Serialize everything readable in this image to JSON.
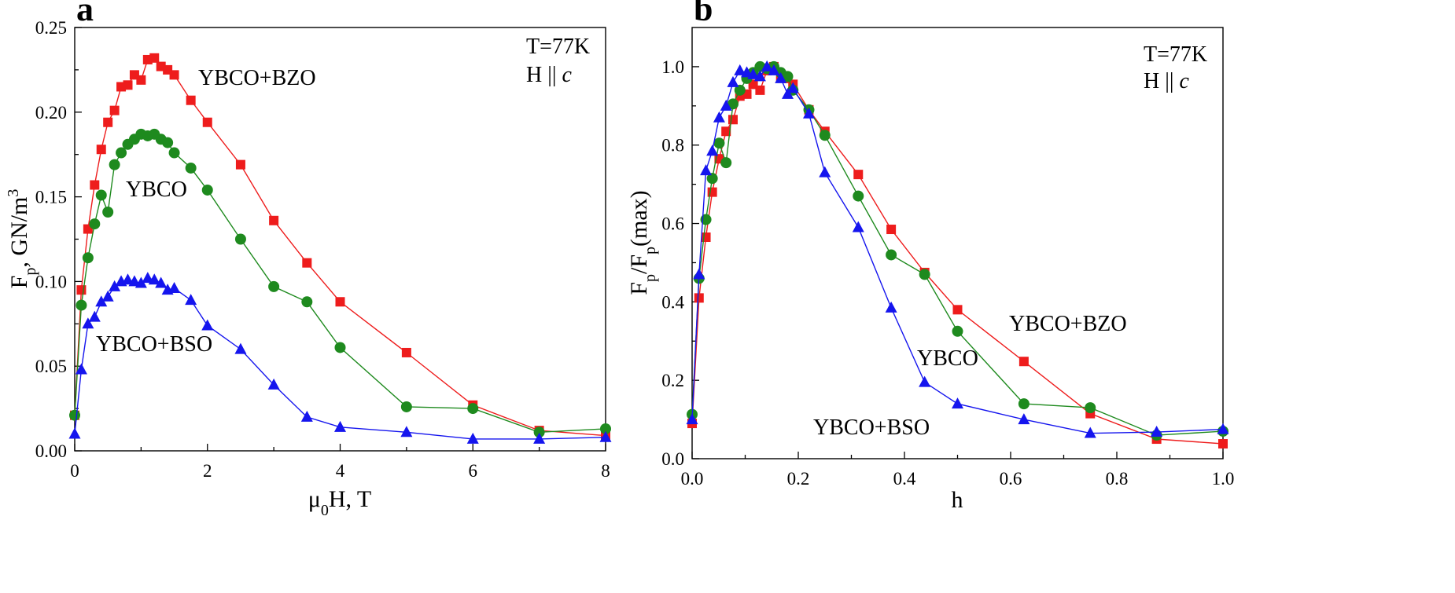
{
  "chart_data": [
    {
      "type": "line",
      "panel_label": "a",
      "xlabel_parts": [
        "μ",
        "0",
        "H, T"
      ],
      "ylabel_parts": [
        "F",
        "p",
        ", GN/m",
        "3"
      ],
      "xlim": [
        0,
        8
      ],
      "ylim": [
        0,
        0.25
      ],
      "x_ticks": [
        0,
        2,
        4,
        6,
        8
      ],
      "x_tick_labels": [
        "0",
        "2",
        "4",
        "6",
        "8"
      ],
      "y_ticks": [
        0,
        0.05,
        0.1,
        0.15,
        0.2,
        0.25
      ],
      "y_tick_labels": [
        "0.00",
        "0.05",
        "0.10",
        "0.15",
        "0.20",
        "0.25"
      ],
      "annotations": [
        "T=77K",
        "H || c"
      ],
      "series": [
        {
          "name": "YBCO+BZO",
          "color": "#ee1c1c",
          "marker": "square",
          "points": [
            [
              0.0,
              0.021
            ],
            [
              0.1,
              0.095
            ],
            [
              0.2,
              0.131
            ],
            [
              0.3,
              0.157
            ],
            [
              0.4,
              0.178
            ],
            [
              0.5,
              0.194
            ],
            [
              0.6,
              0.201
            ],
            [
              0.7,
              0.215
            ],
            [
              0.8,
              0.216
            ],
            [
              0.9,
              0.222
            ],
            [
              1.0,
              0.219
            ],
            [
              1.1,
              0.231
            ],
            [
              1.2,
              0.232
            ],
            [
              1.3,
              0.227
            ],
            [
              1.4,
              0.225
            ],
            [
              1.5,
              0.222
            ],
            [
              1.75,
              0.207
            ],
            [
              2.0,
              0.194
            ],
            [
              2.5,
              0.169
            ],
            [
              3.0,
              0.136
            ],
            [
              3.5,
              0.111
            ],
            [
              4.0,
              0.088
            ],
            [
              5.0,
              0.058
            ],
            [
              6.0,
              0.027
            ],
            [
              7.0,
              0.012
            ],
            [
              8.0,
              0.009
            ]
          ]
        },
        {
          "name": "YBCO",
          "color": "#1e8a1e",
          "marker": "circle",
          "points": [
            [
              0.0,
              0.021
            ],
            [
              0.1,
              0.086
            ],
            [
              0.2,
              0.114
            ],
            [
              0.3,
              0.134
            ],
            [
              0.4,
              0.151
            ],
            [
              0.5,
              0.141
            ],
            [
              0.6,
              0.169
            ],
            [
              0.7,
              0.176
            ],
            [
              0.8,
              0.181
            ],
            [
              0.9,
              0.184
            ],
            [
              1.0,
              0.187
            ],
            [
              1.1,
              0.186
            ],
            [
              1.2,
              0.187
            ],
            [
              1.3,
              0.184
            ],
            [
              1.4,
              0.182
            ],
            [
              1.5,
              0.176
            ],
            [
              1.75,
              0.167
            ],
            [
              2.0,
              0.154
            ],
            [
              2.5,
              0.125
            ],
            [
              3.0,
              0.097
            ],
            [
              3.5,
              0.088
            ],
            [
              4.0,
              0.061
            ],
            [
              5.0,
              0.026
            ],
            [
              6.0,
              0.025
            ],
            [
              7.0,
              0.011
            ],
            [
              8.0,
              0.013
            ]
          ]
        },
        {
          "name": "YBCO+BSO",
          "color": "#1515ee",
          "marker": "triangle",
          "points": [
            [
              0.0,
              0.01
            ],
            [
              0.1,
              0.048
            ],
            [
              0.2,
              0.075
            ],
            [
              0.3,
              0.079
            ],
            [
              0.4,
              0.088
            ],
            [
              0.5,
              0.091
            ],
            [
              0.6,
              0.097
            ],
            [
              0.7,
              0.1
            ],
            [
              0.8,
              0.101
            ],
            [
              0.9,
              0.1
            ],
            [
              1.0,
              0.099
            ],
            [
              1.1,
              0.102
            ],
            [
              1.2,
              0.101
            ],
            [
              1.3,
              0.099
            ],
            [
              1.4,
              0.095
            ],
            [
              1.5,
              0.096
            ],
            [
              1.75,
              0.089
            ],
            [
              2.0,
              0.074
            ],
            [
              2.5,
              0.06
            ],
            [
              3.0,
              0.039
            ],
            [
              3.5,
              0.02
            ],
            [
              4.0,
              0.014
            ],
            [
              5.0,
              0.011
            ],
            [
              6.0,
              0.007
            ],
            [
              7.0,
              0.007
            ],
            [
              8.0,
              0.008
            ]
          ]
        }
      ]
    },
    {
      "type": "line",
      "panel_label": "b",
      "xlabel": "h",
      "ylabel_parts": [
        "F",
        "p",
        "/F",
        "p",
        "(max)"
      ],
      "xlim": [
        0,
        1
      ],
      "ylim": [
        0,
        1.1
      ],
      "x_ticks": [
        0,
        0.2,
        0.4,
        0.6,
        0.8,
        1.0
      ],
      "x_tick_labels": [
        "0.0",
        "0.2",
        "0.4",
        "0.6",
        "0.8",
        "1.0"
      ],
      "y_ticks": [
        0,
        0.2,
        0.4,
        0.6,
        0.8,
        1.0
      ],
      "y_tick_labels": [
        "0.0",
        "0.2",
        "0.4",
        "0.6",
        "0.8",
        "1.0"
      ],
      "annotations": [
        "T=77K",
        "H || c"
      ],
      "series": [
        {
          "name": "YBCO+BZO",
          "color": "#ee1c1c",
          "marker": "square",
          "points": [
            [
              0.0,
              0.09
            ],
            [
              0.013,
              0.41
            ],
            [
              0.026,
              0.565
            ],
            [
              0.038,
              0.68
            ],
            [
              0.051,
              0.765
            ],
            [
              0.064,
              0.835
            ],
            [
              0.077,
              0.865
            ],
            [
              0.09,
              0.925
            ],
            [
              0.103,
              0.93
            ],
            [
              0.115,
              0.955
            ],
            [
              0.128,
              0.94
            ],
            [
              0.141,
              0.99
            ],
            [
              0.154,
              1.0
            ],
            [
              0.167,
              0.975
            ],
            [
              0.18,
              0.97
            ],
            [
              0.19,
              0.955
            ],
            [
              0.22,
              0.89
            ],
            [
              0.25,
              0.835
            ],
            [
              0.313,
              0.725
            ],
            [
              0.375,
              0.585
            ],
            [
              0.438,
              0.475
            ],
            [
              0.5,
              0.38
            ],
            [
              0.625,
              0.248
            ],
            [
              0.75,
              0.115
            ],
            [
              0.875,
              0.05
            ],
            [
              1.0,
              0.038
            ]
          ]
        },
        {
          "name": "YBCO",
          "color": "#1e8a1e",
          "marker": "circle",
          "points": [
            [
              0.0,
              0.113
            ],
            [
              0.013,
              0.46
            ],
            [
              0.026,
              0.61
            ],
            [
              0.038,
              0.715
            ],
            [
              0.051,
              0.805
            ],
            [
              0.064,
              0.755
            ],
            [
              0.077,
              0.905
            ],
            [
              0.09,
              0.94
            ],
            [
              0.103,
              0.97
            ],
            [
              0.115,
              0.985
            ],
            [
              0.128,
              1.0
            ],
            [
              0.141,
              0.995
            ],
            [
              0.154,
              1.0
            ],
            [
              0.167,
              0.985
            ],
            [
              0.18,
              0.975
            ],
            [
              0.19,
              0.94
            ],
            [
              0.22,
              0.89
            ],
            [
              0.25,
              0.825
            ],
            [
              0.313,
              0.67
            ],
            [
              0.375,
              0.52
            ],
            [
              0.438,
              0.47
            ],
            [
              0.5,
              0.325
            ],
            [
              0.625,
              0.14
            ],
            [
              0.75,
              0.13
            ],
            [
              0.875,
              0.06
            ],
            [
              1.0,
              0.07
            ]
          ]
        },
        {
          "name": "YBCO+BSO",
          "color": "#1515ee",
          "marker": "triangle",
          "points": [
            [
              0.0,
              0.1
            ],
            [
              0.013,
              0.47
            ],
            [
              0.026,
              0.735
            ],
            [
              0.038,
              0.785
            ],
            [
              0.051,
              0.87
            ],
            [
              0.064,
              0.9
            ],
            [
              0.077,
              0.96
            ],
            [
              0.09,
              0.99
            ],
            [
              0.103,
              0.985
            ],
            [
              0.115,
              0.98
            ],
            [
              0.128,
              0.975
            ],
            [
              0.141,
              1.0
            ],
            [
              0.154,
              0.99
            ],
            [
              0.167,
              0.97
            ],
            [
              0.18,
              0.93
            ],
            [
              0.19,
              0.945
            ],
            [
              0.22,
              0.88
            ],
            [
              0.25,
              0.73
            ],
            [
              0.313,
              0.59
            ],
            [
              0.375,
              0.385
            ],
            [
              0.438,
              0.195
            ],
            [
              0.5,
              0.14
            ],
            [
              0.625,
              0.1
            ],
            [
              0.75,
              0.065
            ],
            [
              0.875,
              0.068
            ],
            [
              1.0,
              0.075
            ]
          ]
        }
      ]
    }
  ]
}
